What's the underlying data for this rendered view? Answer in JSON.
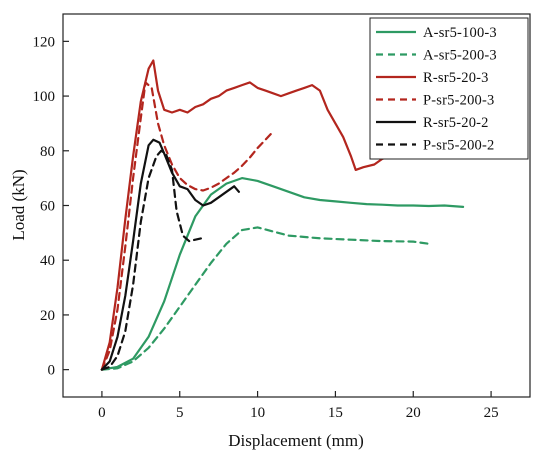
{
  "chart_data": {
    "type": "line",
    "title": "",
    "xlabel": "Displacement (mm)",
    "ylabel": "Load (kN)",
    "xlim": [
      -2.5,
      27.5
    ],
    "ylim": [
      -10,
      130
    ],
    "xticks": [
      0,
      5,
      10,
      15,
      20,
      25
    ],
    "yticks": [
      0,
      20,
      40,
      60,
      80,
      100,
      120
    ],
    "grid": false,
    "legend_position": "top-right",
    "series": [
      {
        "name": "A-sr5-100-3",
        "color": "#2e9a63",
        "dash": "solid",
        "x": [
          0,
          1,
          2,
          3,
          4,
          5,
          6,
          7,
          8,
          9,
          10,
          11,
          12,
          13,
          14,
          15,
          16,
          17,
          18,
          19,
          20,
          21,
          22,
          23.2
        ],
        "y": [
          0,
          1,
          4,
          12,
          25,
          42,
          56,
          64,
          68,
          70,
          69,
          67,
          65,
          63,
          62,
          61.5,
          61,
          60.5,
          60.3,
          60,
          60,
          59.8,
          60,
          59.5
        ]
      },
      {
        "name": "A-sr5-200-3",
        "color": "#2e9a63",
        "dash": "dashed",
        "x": [
          0,
          1,
          2,
          3,
          4,
          5,
          6,
          7,
          8,
          9,
          10,
          11,
          12,
          14,
          16,
          18,
          20,
          21
        ],
        "y": [
          0,
          0.5,
          3,
          8,
          15,
          23,
          31,
          39,
          46,
          51,
          52,
          50.5,
          49,
          48,
          47.5,
          47,
          46.8,
          46
        ]
      },
      {
        "name": "R-sr5-20-3",
        "color": "#b3261e",
        "dash": "solid",
        "x": [
          0,
          0.5,
          1,
          1.5,
          2,
          2.5,
          3,
          3.3,
          3.6,
          4,
          4.5,
          5,
          5.5,
          6,
          6.5,
          7,
          7.5,
          8,
          8.5,
          9,
          9.5,
          10,
          10.5,
          11,
          11.5,
          12,
          12.5,
          13,
          13.5,
          14,
          14.5,
          15,
          15.5,
          16,
          16.3,
          16.8,
          17.5,
          18,
          18.5,
          19,
          19.5,
          20
        ],
        "y": [
          0,
          10,
          30,
          55,
          78,
          98,
          110,
          113,
          102,
          95,
          94,
          95,
          94,
          96,
          97,
          99,
          100,
          102,
          103,
          104,
          105,
          103,
          102,
          101,
          100,
          101,
          102,
          103,
          104,
          102,
          95,
          90,
          85,
          78,
          73,
          74,
          75,
          77,
          78,
          79,
          80,
          81
        ]
      },
      {
        "name": "P-sr5-200-3",
        "color": "#b3261e",
        "dash": "dashed",
        "x": [
          0,
          0.5,
          1,
          1.5,
          2,
          2.5,
          2.8,
          3.2,
          3.6,
          4,
          4.5,
          5,
          5.5,
          6,
          6.5,
          7,
          7.5,
          8,
          8.5,
          9,
          9.5,
          10,
          10.5,
          11
        ],
        "y": [
          0,
          7,
          22,
          45,
          70,
          92,
          105,
          103,
          90,
          82,
          75,
          70,
          67.5,
          66,
          65.5,
          66.5,
          68,
          70,
          72,
          74.5,
          77.5,
          81,
          84,
          87
        ]
      },
      {
        "name": "R-sr5-20-2",
        "color": "#111111",
        "dash": "solid",
        "x": [
          0,
          0.5,
          1,
          1.5,
          2,
          2.5,
          3,
          3.3,
          3.7,
          4,
          4.5,
          5,
          5.5,
          6,
          6.5,
          7,
          7.5,
          8,
          8.5,
          8.8
        ],
        "y": [
          0,
          3,
          12,
          27,
          47,
          68,
          82,
          84,
          83,
          79,
          72,
          67,
          66,
          62,
          60,
          61,
          63,
          65,
          67,
          65
        ]
      },
      {
        "name": "P-sr5-200-2",
        "color": "#111111",
        "dash": "dashed",
        "x": [
          0,
          0.5,
          1,
          1.5,
          2,
          2.5,
          3,
          3.5,
          3.8,
          4.1,
          4.5,
          4.8,
          5.2,
          5.6,
          6,
          6.4
        ],
        "y": [
          0,
          1,
          5,
          14,
          31,
          54,
          70,
          78,
          80,
          79,
          73,
          58,
          49,
          47,
          47.5,
          48
        ]
      }
    ]
  }
}
